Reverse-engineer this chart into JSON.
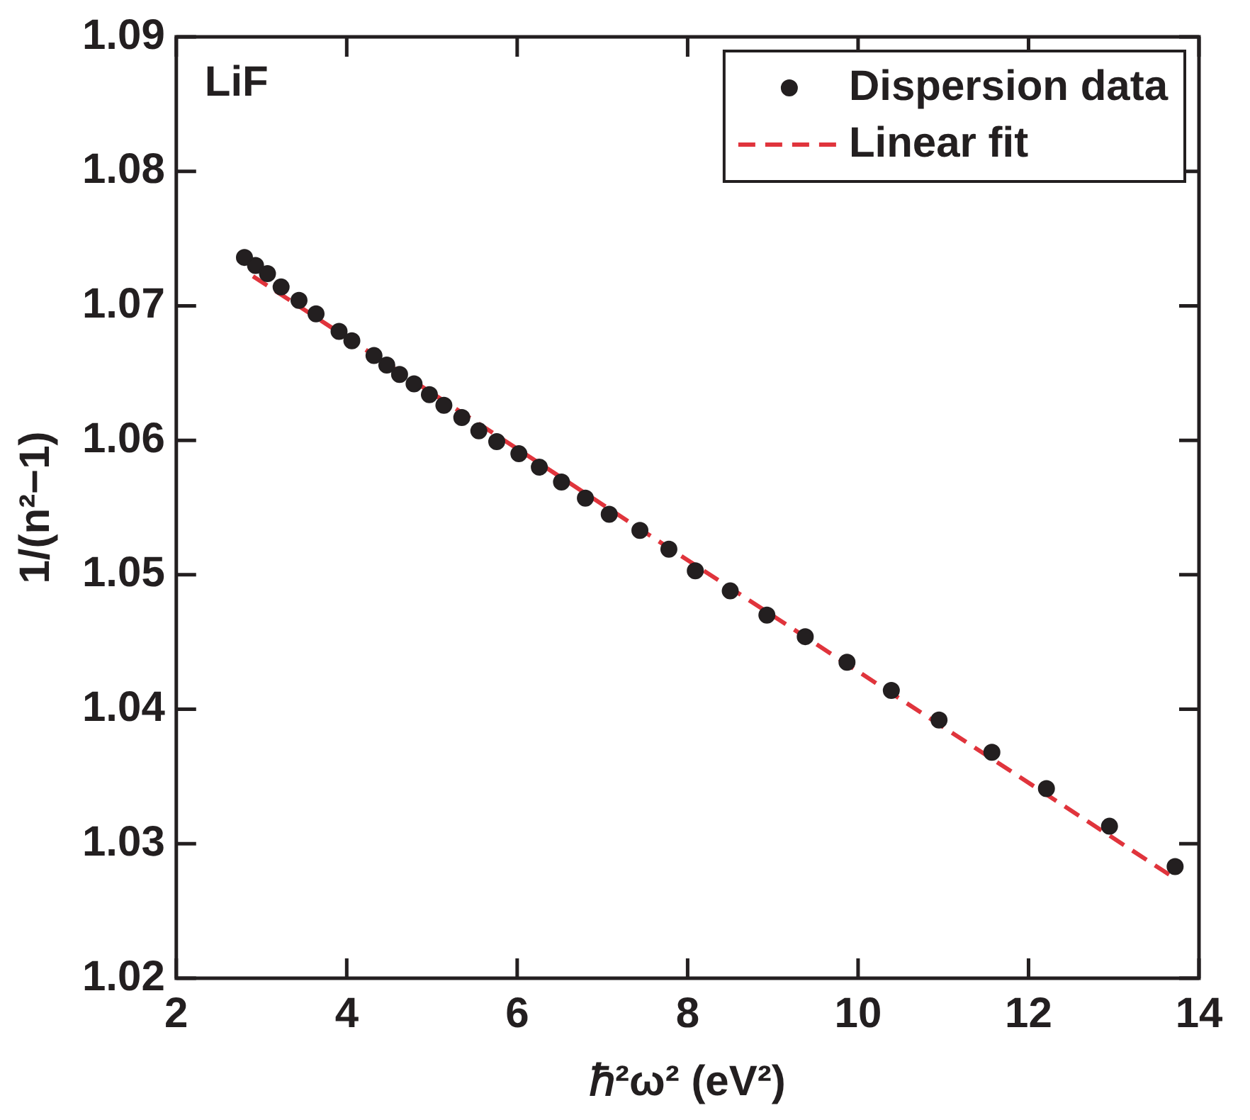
{
  "chart_data": {
    "type": "scatter",
    "xlabel": "ℏ²ω² (eV²)",
    "ylabel": "1/(n²−1)",
    "annotations": [
      "LiF"
    ],
    "xlim": [
      2,
      14
    ],
    "xticks": [
      2,
      4,
      6,
      8,
      10,
      12,
      14
    ],
    "ylim": [
      1.02,
      1.09
    ],
    "yticks": [
      1.02,
      1.03,
      1.04,
      1.05,
      1.06,
      1.07,
      1.08,
      1.09
    ],
    "legend": "top right",
    "grid": false,
    "series": [
      {
        "name": "Dispersion data",
        "type": "scatter",
        "marker": "circle",
        "color": "#231f20",
        "x": [
          2.8,
          2.93,
          3.07,
          3.23,
          3.44,
          3.64,
          3.91,
          4.06,
          4.32,
          4.47,
          4.62,
          4.79,
          4.97,
          5.14,
          5.35,
          5.55,
          5.76,
          6.02,
          6.26,
          6.52,
          6.8,
          7.08,
          7.44,
          7.78,
          8.09,
          8.5,
          8.93,
          9.38,
          9.87,
          10.39,
          10.95,
          11.57,
          12.21,
          12.95,
          13.72
        ],
        "values": [
          1.0736,
          1.073,
          1.0724,
          1.0714,
          1.0704,
          1.0694,
          1.0681,
          1.0674,
          1.0663,
          1.0656,
          1.0649,
          1.0642,
          1.0634,
          1.0626,
          1.0617,
          1.0607,
          1.0599,
          1.059,
          1.058,
          1.0569,
          1.0557,
          1.0545,
          1.0533,
          1.0519,
          1.0503,
          1.0488,
          1.047,
          1.0454,
          1.0435,
          1.0414,
          1.0392,
          1.0368,
          1.0341,
          1.0313,
          1.0283
        ]
      },
      {
        "name": "Linear fit",
        "type": "line",
        "line_style": "dashed",
        "marker": "none",
        "color": "#e0343c",
        "x": [
          2.9,
          13.7
        ],
        "values": [
          1.0722,
          1.0275
        ]
      }
    ]
  }
}
